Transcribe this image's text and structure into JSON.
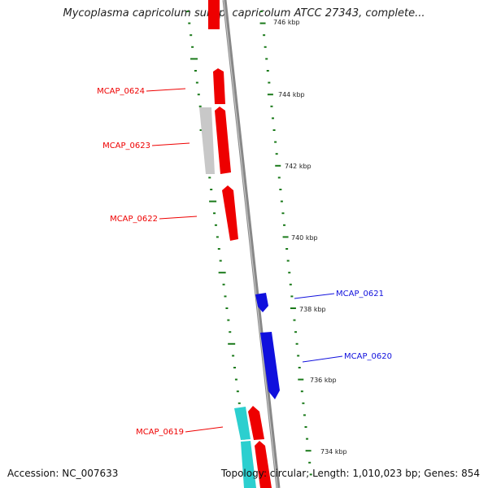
{
  "title": "Mycoplasma capricolum subsp. capricolum ATCC 27343, complete...",
  "footer": {
    "accession": "Accession: NC_007633",
    "summary": "Topology: circular; Length: 1,010,023 bp; Genes: 854"
  },
  "scale_labels": [
    "746 kbp",
    "744 kbp",
    "742 kbp",
    "740 kbp",
    "738 kbp",
    "736 kbp",
    "734 kbp"
  ],
  "gene_labels": [
    {
      "name": "MCAP_0624",
      "strand": "forward"
    },
    {
      "name": "MCAP_0623",
      "strand": "forward"
    },
    {
      "name": "MCAP_0622",
      "strand": "forward"
    },
    {
      "name": "MCAP_0621",
      "strand": "reverse"
    },
    {
      "name": "MCAP_0620",
      "strand": "reverse"
    },
    {
      "name": "MCAP_0619",
      "strand": "forward"
    }
  ],
  "colors": {
    "forward_gene": "#ee0000",
    "reverse_gene": "#1010dd",
    "other_feature": "#c8c8c8",
    "cyan_feature": "#2ccfcf",
    "gc_skew_dots": "#1a7a1a",
    "backbone": "#888888"
  }
}
